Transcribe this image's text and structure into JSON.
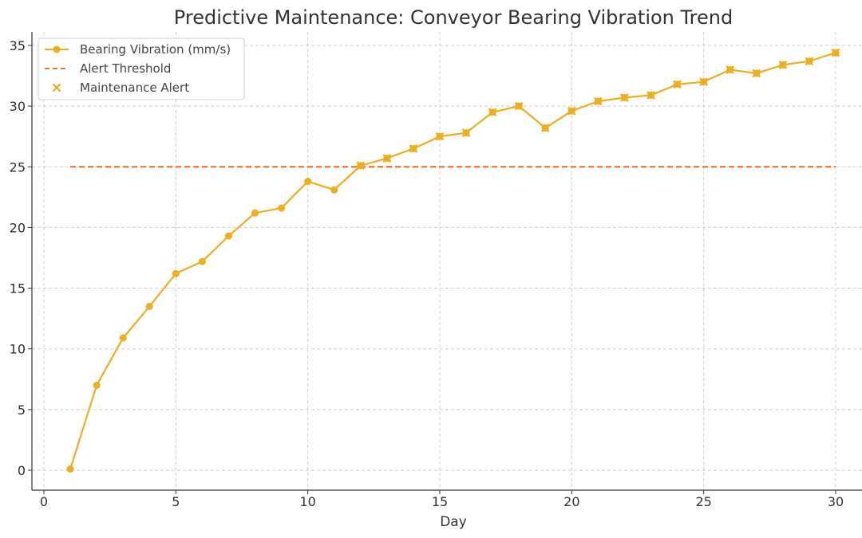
{
  "chart_data": {
    "type": "line",
    "title": "Predictive Maintenance: Conveyor Bearing Vibration Trend",
    "xlabel": "Day",
    "ylabel": "",
    "xlim": [
      0,
      30.5
    ],
    "ylim": [
      0,
      35
    ],
    "x_ticks": [
      0,
      5,
      10,
      15,
      20,
      25,
      30
    ],
    "y_ticks": [
      0,
      5,
      10,
      15,
      20,
      25,
      30,
      35
    ],
    "grid": true,
    "legend_position": "top-left",
    "series": [
      {
        "name": "Bearing Vibration (mm/s)",
        "kind": "line-with-markers",
        "color": "#f0ad1e",
        "x": [
          1,
          2,
          3,
          4,
          5,
          6,
          7,
          8,
          9,
          10,
          11,
          12,
          13,
          14,
          15,
          16,
          17,
          18,
          19,
          20,
          21,
          22,
          23,
          24,
          25,
          26,
          27,
          28,
          29,
          30
        ],
        "values": [
          0.1,
          7.0,
          10.9,
          13.5,
          16.2,
          17.2,
          19.3,
          21.2,
          21.6,
          23.8,
          23.1,
          25.1,
          25.7,
          26.5,
          27.5,
          27.8,
          29.5,
          30.0,
          28.2,
          29.6,
          30.4,
          30.7,
          30.9,
          31.8,
          32.0,
          33.0,
          32.7,
          33.4,
          33.7,
          34.4
        ]
      },
      {
        "name": "Alert Threshold",
        "kind": "dashed-line",
        "color": "#e8792c",
        "x": [
          1,
          30
        ],
        "values": [
          25,
          25
        ]
      },
      {
        "name": "Maintenance Alert",
        "kind": "x-markers",
        "color": "#f0ad1e",
        "x": [
          12,
          13,
          14,
          15,
          16,
          17,
          18,
          19,
          20,
          21,
          22,
          23,
          24,
          25,
          26,
          27,
          28,
          29,
          30
        ],
        "values": [
          25.1,
          25.7,
          26.5,
          27.5,
          27.8,
          29.5,
          30.0,
          28.2,
          29.6,
          30.4,
          30.7,
          30.9,
          31.8,
          32.0,
          33.0,
          32.7,
          33.4,
          33.7,
          34.4
        ]
      }
    ]
  }
}
